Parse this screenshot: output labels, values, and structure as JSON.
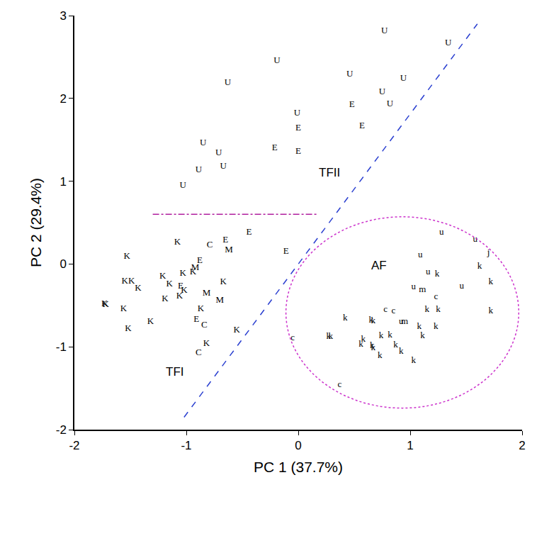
{
  "chart_data": {
    "type": "scatter",
    "xlabel": "PC 1 (37.7%)",
    "ylabel": "PC 2 (29.4%)",
    "xlim": [
      -2,
      2
    ],
    "ylim": [
      -2,
      3
    ],
    "xticks": [
      -2,
      -1,
      0,
      1,
      2
    ],
    "yticks": [
      -2,
      -1,
      0,
      1,
      2,
      3
    ],
    "grid": false,
    "series": [
      {
        "name": "U",
        "color": "#000000",
        "marker": "text",
        "x": [
          0.77,
          1.34,
          -0.19,
          -0.63,
          0.46,
          0.94,
          0.75,
          0.82,
          -0.01,
          -0.85,
          -0.71,
          -0.67,
          -0.89,
          -1.03
        ],
        "y": [
          2.81,
          2.67,
          2.45,
          2.19,
          2.29,
          2.24,
          2.08,
          1.93,
          1.82,
          1.46,
          1.34,
          1.18,
          1.14,
          0.95
        ]
      },
      {
        "name": "E",
        "color": "#000000",
        "marker": "text",
        "x": [
          0.48,
          0.57,
          0.0,
          -0.21,
          0.0,
          -0.44,
          -0.65,
          -0.11,
          -0.88,
          -1.05,
          -0.91
        ],
        "y": [
          1.92,
          1.67,
          1.64,
          1.4,
          1.36,
          0.38,
          0.29,
          0.15,
          0.04,
          -0.27,
          -0.67
        ]
      },
      {
        "name": "M",
        "color": "#000000",
        "marker": "text",
        "x": [
          -0.62,
          -0.92,
          -0.82,
          -0.7
        ],
        "y": [
          0.17,
          -0.05,
          -0.35,
          -0.44
        ]
      },
      {
        "name": "C",
        "color": "#000000",
        "marker": "text",
        "x": [
          -0.79,
          -0.84,
          -0.89
        ],
        "y": [
          0.23,
          -0.74,
          -1.07
        ]
      },
      {
        "name": "K",
        "color": "#000000",
        "marker": "text",
        "x": [
          -1.08,
          -1.53,
          -1.55,
          -1.49,
          -1.43,
          -1.73,
          -1.72,
          -1.56,
          -1.52,
          -1.32,
          -1.21,
          -1.15,
          -1.03,
          -0.94,
          -1.19,
          -1.06,
          -1.02,
          -0.87,
          -0.67,
          -0.55,
          -0.82
        ],
        "y": [
          0.26,
          0.09,
          -0.21,
          -0.21,
          -0.29,
          -0.48,
          -0.49,
          -0.54,
          -0.78,
          -0.7,
          -0.15,
          -0.24,
          -0.11,
          -0.1,
          -0.42,
          -0.39,
          -0.32,
          -0.54,
          -0.22,
          -0.8,
          -0.96
        ]
      },
      {
        "name": "k",
        "color": "#000000",
        "marker": "text",
        "x": [
          0.42,
          0.27,
          0.29,
          0.65,
          0.67,
          0.58,
          0.56,
          0.66,
          0.67,
          0.74,
          0.73,
          0.82,
          0.87,
          0.92,
          1.03,
          1.08,
          1.11,
          1.15,
          1.25,
          1.23,
          1.24,
          1.62,
          1.72,
          1.72
        ],
        "y": [
          -0.65,
          -0.88,
          -0.88,
          -0.68,
          -0.69,
          -0.91,
          -0.97,
          -0.99,
          -1.01,
          -0.87,
          -1.11,
          -0.86,
          -0.98,
          -1.06,
          -1.17,
          -0.76,
          -0.87,
          -0.55,
          -0.55,
          -0.76,
          -0.12,
          -0.03,
          -0.22,
          -0.57
        ]
      },
      {
        "name": "c",
        "color": "#000000",
        "marker": "text",
        "x": [
          0.78,
          0.85,
          1.23,
          0.37,
          -0.05
        ],
        "y": [
          -0.55,
          -0.57,
          -0.4,
          -1.46,
          -0.89
        ]
      },
      {
        "name": "u",
        "color": "#000000",
        "marker": "text",
        "x": [
          1.28,
          1.58,
          1.09,
          1.16,
          1.46,
          1.03,
          0.92
        ],
        "y": [
          0.38,
          0.3,
          0.11,
          -0.1,
          -0.27,
          -0.28,
          -0.7
        ]
      },
      {
        "name": "m",
        "color": "#000000",
        "marker": "text",
        "x": [
          1.11,
          0.95
        ],
        "y": [
          -0.31,
          -0.7
        ]
      },
      {
        "name": "j",
        "color": "#000000",
        "marker": "text",
        "x": [
          1.7
        ],
        "y": [
          0.13
        ]
      }
    ],
    "annotations": [
      {
        "text": "TFII",
        "x": 0.28,
        "y": 1.1
      },
      {
        "text": "AF",
        "x": 0.72,
        "y": -0.02
      },
      {
        "text": "TFI",
        "x": -1.1,
        "y": -1.3
      }
    ],
    "shapes": [
      {
        "type": "line",
        "x": [
          -1.02,
          1.6
        ],
        "y": [
          -1.85,
          2.9
        ],
        "color": "#2a3fd0",
        "line_style": "dash"
      },
      {
        "type": "line",
        "x": [
          -1.3,
          0.18
        ],
        "y": [
          0.6,
          0.6
        ],
        "color": "#b0209f",
        "line_style": "dashdot"
      },
      {
        "type": "ellipse",
        "x": [
          -0.11,
          1.97
        ],
        "y": [
          -1.74,
          0.57
        ],
        "color": "#cc33cc",
        "line_style": "dot"
      }
    ]
  }
}
